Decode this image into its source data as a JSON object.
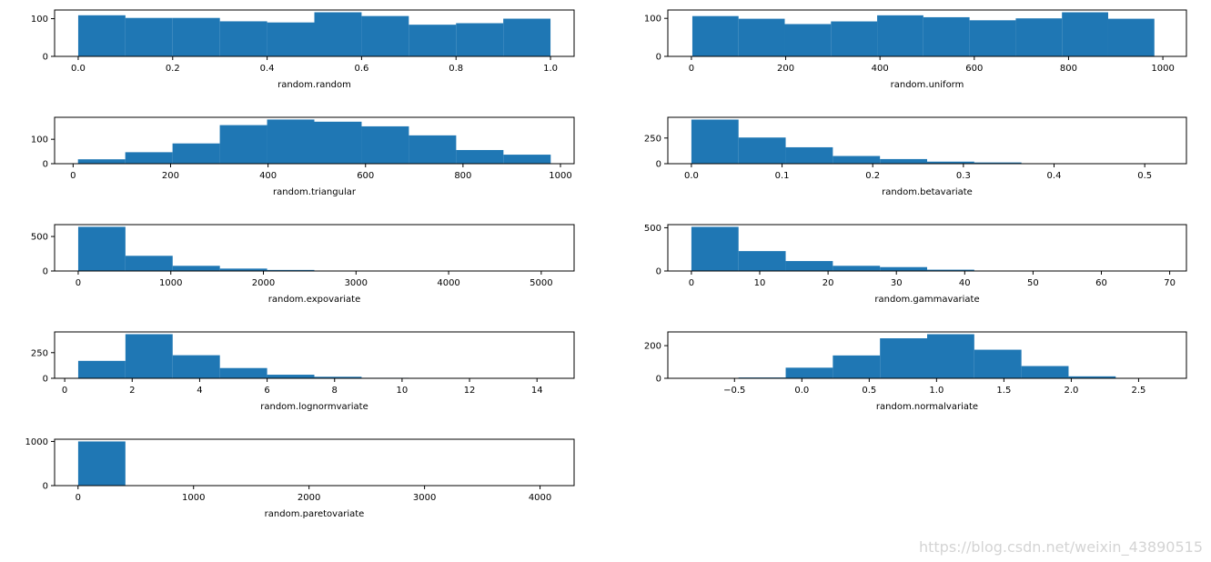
{
  "watermark": "https://blog.csdn.net/weixin_43890515",
  "colors": {
    "bar": "#1f77b4",
    "axis": "#000000",
    "background": "#ffffff"
  },
  "chart_data": [
    {
      "type": "bar",
      "subtype": "histogram",
      "xlabel": "random.random",
      "ylabel": "",
      "bin_edges": [
        0.0,
        0.1,
        0.2,
        0.3,
        0.4,
        0.5,
        0.6,
        0.7,
        0.8,
        0.9,
        1.0
      ],
      "values": [
        109,
        102,
        102,
        93,
        90,
        117,
        107,
        84,
        88,
        100
      ],
      "xlim": [
        -0.05,
        1.05
      ],
      "ylim": [
        0,
        123
      ],
      "xticks": [
        0.0,
        0.2,
        0.4,
        0.6,
        0.8,
        1.0
      ],
      "xtick_labels": [
        "0.0",
        "0.2",
        "0.4",
        "0.6",
        "0.8",
        "1.0"
      ],
      "yticks": [
        0,
        100
      ],
      "ytick_labels": [
        "0",
        "100"
      ]
    },
    {
      "type": "bar",
      "subtype": "histogram",
      "xlabel": "random.uniform",
      "ylabel": "",
      "bin_edges": [
        2,
        100,
        198,
        296,
        394,
        492,
        590,
        688,
        786,
        884,
        982
      ],
      "values": [
        106,
        99,
        85,
        92,
        108,
        103,
        95,
        100,
        116,
        99
      ],
      "xlim": [
        -50,
        1050
      ],
      "ylim": [
        0,
        122
      ],
      "xticks": [
        0,
        200,
        400,
        600,
        800,
        1000
      ],
      "xtick_labels": [
        "0",
        "200",
        "400",
        "600",
        "800",
        "1000"
      ],
      "yticks": [
        0,
        100
      ],
      "ytick_labels": [
        "0",
        "100"
      ]
    },
    {
      "type": "bar",
      "subtype": "histogram",
      "xlabel": "random.triangular",
      "ylabel": "",
      "bin_edges": [
        10,
        107,
        204,
        301,
        398,
        495,
        592,
        689,
        786,
        883,
        980
      ],
      "values": [
        18,
        47,
        83,
        158,
        181,
        172,
        153,
        116,
        56,
        37
      ],
      "xlim": [
        -38,
        1028
      ],
      "ylim": [
        0,
        190
      ],
      "xticks": [
        0,
        200,
        400,
        600,
        800,
        1000
      ],
      "xtick_labels": [
        "0",
        "200",
        "400",
        "600",
        "800",
        "1000"
      ],
      "yticks": [
        0,
        100
      ],
      "ytick_labels": [
        "0",
        "100"
      ]
    },
    {
      "type": "bar",
      "subtype": "histogram",
      "xlabel": "random.betavariate",
      "ylabel": "",
      "bin_edges": [
        0.0,
        0.052,
        0.104,
        0.156,
        0.208,
        0.26,
        0.312,
        0.364,
        0.416,
        0.468,
        0.52
      ],
      "values": [
        430,
        255,
        160,
        75,
        45,
        20,
        12,
        4,
        1,
        1
      ],
      "xlim": [
        -0.026,
        0.546
      ],
      "ylim": [
        0,
        452
      ],
      "xticks": [
        0.0,
        0.1,
        0.2,
        0.3,
        0.4,
        0.5
      ],
      "xtick_labels": [
        "0.0",
        "0.1",
        "0.2",
        "0.3",
        "0.4",
        "0.5"
      ],
      "yticks": [
        0,
        250
      ],
      "ytick_labels": [
        "0",
        "250"
      ]
    },
    {
      "type": "bar",
      "subtype": "histogram",
      "xlabel": "random.expovariate",
      "ylabel": "",
      "bin_edges": [
        0,
        510,
        1020,
        1530,
        2040,
        2550,
        3060,
        3570,
        4080,
        4590,
        5100
      ],
      "values": [
        640,
        220,
        75,
        35,
        15,
        5,
        3,
        2,
        1,
        1
      ],
      "xlim": [
        -255,
        5355
      ],
      "ylim": [
        0,
        672
      ],
      "xticks": [
        0,
        1000,
        2000,
        3000,
        4000,
        5000
      ],
      "xtick_labels": [
        "0",
        "1000",
        "2000",
        "3000",
        "4000",
        "5000"
      ],
      "yticks": [
        0,
        500
      ],
      "ytick_labels": [
        "0",
        "500"
      ]
    },
    {
      "type": "bar",
      "subtype": "histogram",
      "xlabel": "random.gammavariate",
      "ylabel": "",
      "bin_edges": [
        0,
        6.9,
        13.8,
        20.7,
        27.6,
        34.5,
        41.4,
        48.3,
        55.2,
        62.1,
        69
      ],
      "values": [
        510,
        230,
        115,
        60,
        45,
        15,
        5,
        3,
        1,
        1
      ],
      "xlim": [
        -3.45,
        72.45
      ],
      "ylim": [
        0,
        536
      ],
      "xticks": [
        0,
        10,
        20,
        30,
        40,
        50,
        60,
        70
      ],
      "xtick_labels": [
        "0",
        "10",
        "20",
        "30",
        "40",
        "50",
        "60",
        "70"
      ],
      "yticks": [
        0,
        500
      ],
      "ytick_labels": [
        "0",
        "500"
      ]
    },
    {
      "type": "bar",
      "subtype": "histogram",
      "xlabel": "random.lognormvariate",
      "ylabel": "",
      "bin_edges": [
        0.4,
        1.8,
        3.2,
        4.6,
        6.0,
        7.4,
        8.8,
        10.2,
        11.6,
        13.0,
        14.4
      ],
      "values": [
        170,
        430,
        225,
        100,
        35,
        15,
        5,
        3,
        1,
        1
      ],
      "xlim": [
        -0.3,
        15.1
      ],
      "ylim": [
        0,
        452
      ],
      "xticks": [
        0,
        2,
        4,
        6,
        8,
        10,
        12,
        14
      ],
      "xtick_labels": [
        "0",
        "2",
        "4",
        "6",
        "8",
        "10",
        "12",
        "14"
      ],
      "yticks": [
        0,
        250
      ],
      "ytick_labels": [
        "0",
        "250"
      ]
    },
    {
      "type": "bar",
      "subtype": "histogram",
      "xlabel": "random.normalvariate",
      "ylabel": "",
      "bin_edges": [
        -0.82,
        -0.47,
        -0.12,
        0.23,
        0.58,
        0.93,
        1.28,
        1.63,
        1.98,
        2.33,
        2.68
      ],
      "values": [
        1,
        5,
        65,
        140,
        245,
        270,
        175,
        75,
        12,
        2
      ],
      "xlim": [
        -0.995,
        2.855
      ],
      "ylim": [
        0,
        284
      ],
      "xticks": [
        -0.5,
        0.0,
        0.5,
        1.0,
        1.5,
        2.0,
        2.5
      ],
      "xtick_labels": [
        "−0.5",
        "0.0",
        "0.5",
        "1.0",
        "1.5",
        "2.0",
        "2.5"
      ],
      "yticks": [
        0,
        200
      ],
      "ytick_labels": [
        "0",
        "200"
      ]
    },
    {
      "type": "bar",
      "subtype": "histogram",
      "xlabel": "random.paretovariate",
      "ylabel": "",
      "bin_edges": [
        1,
        410,
        819,
        1228,
        1637,
        2046,
        2455,
        2864,
        3273,
        3682,
        4091
      ],
      "values": [
        1000,
        0,
        0,
        0,
        0,
        0,
        0,
        0,
        0,
        0
      ],
      "xlim": [
        -203,
        4295
      ],
      "ylim": [
        0,
        1050
      ],
      "xticks": [
        0,
        1000,
        2000,
        3000,
        4000
      ],
      "xtick_labels": [
        "0",
        "1000",
        "2000",
        "3000",
        "4000"
      ],
      "yticks": [
        0,
        1000
      ],
      "ytick_labels": [
        "0",
        "1000"
      ]
    }
  ]
}
